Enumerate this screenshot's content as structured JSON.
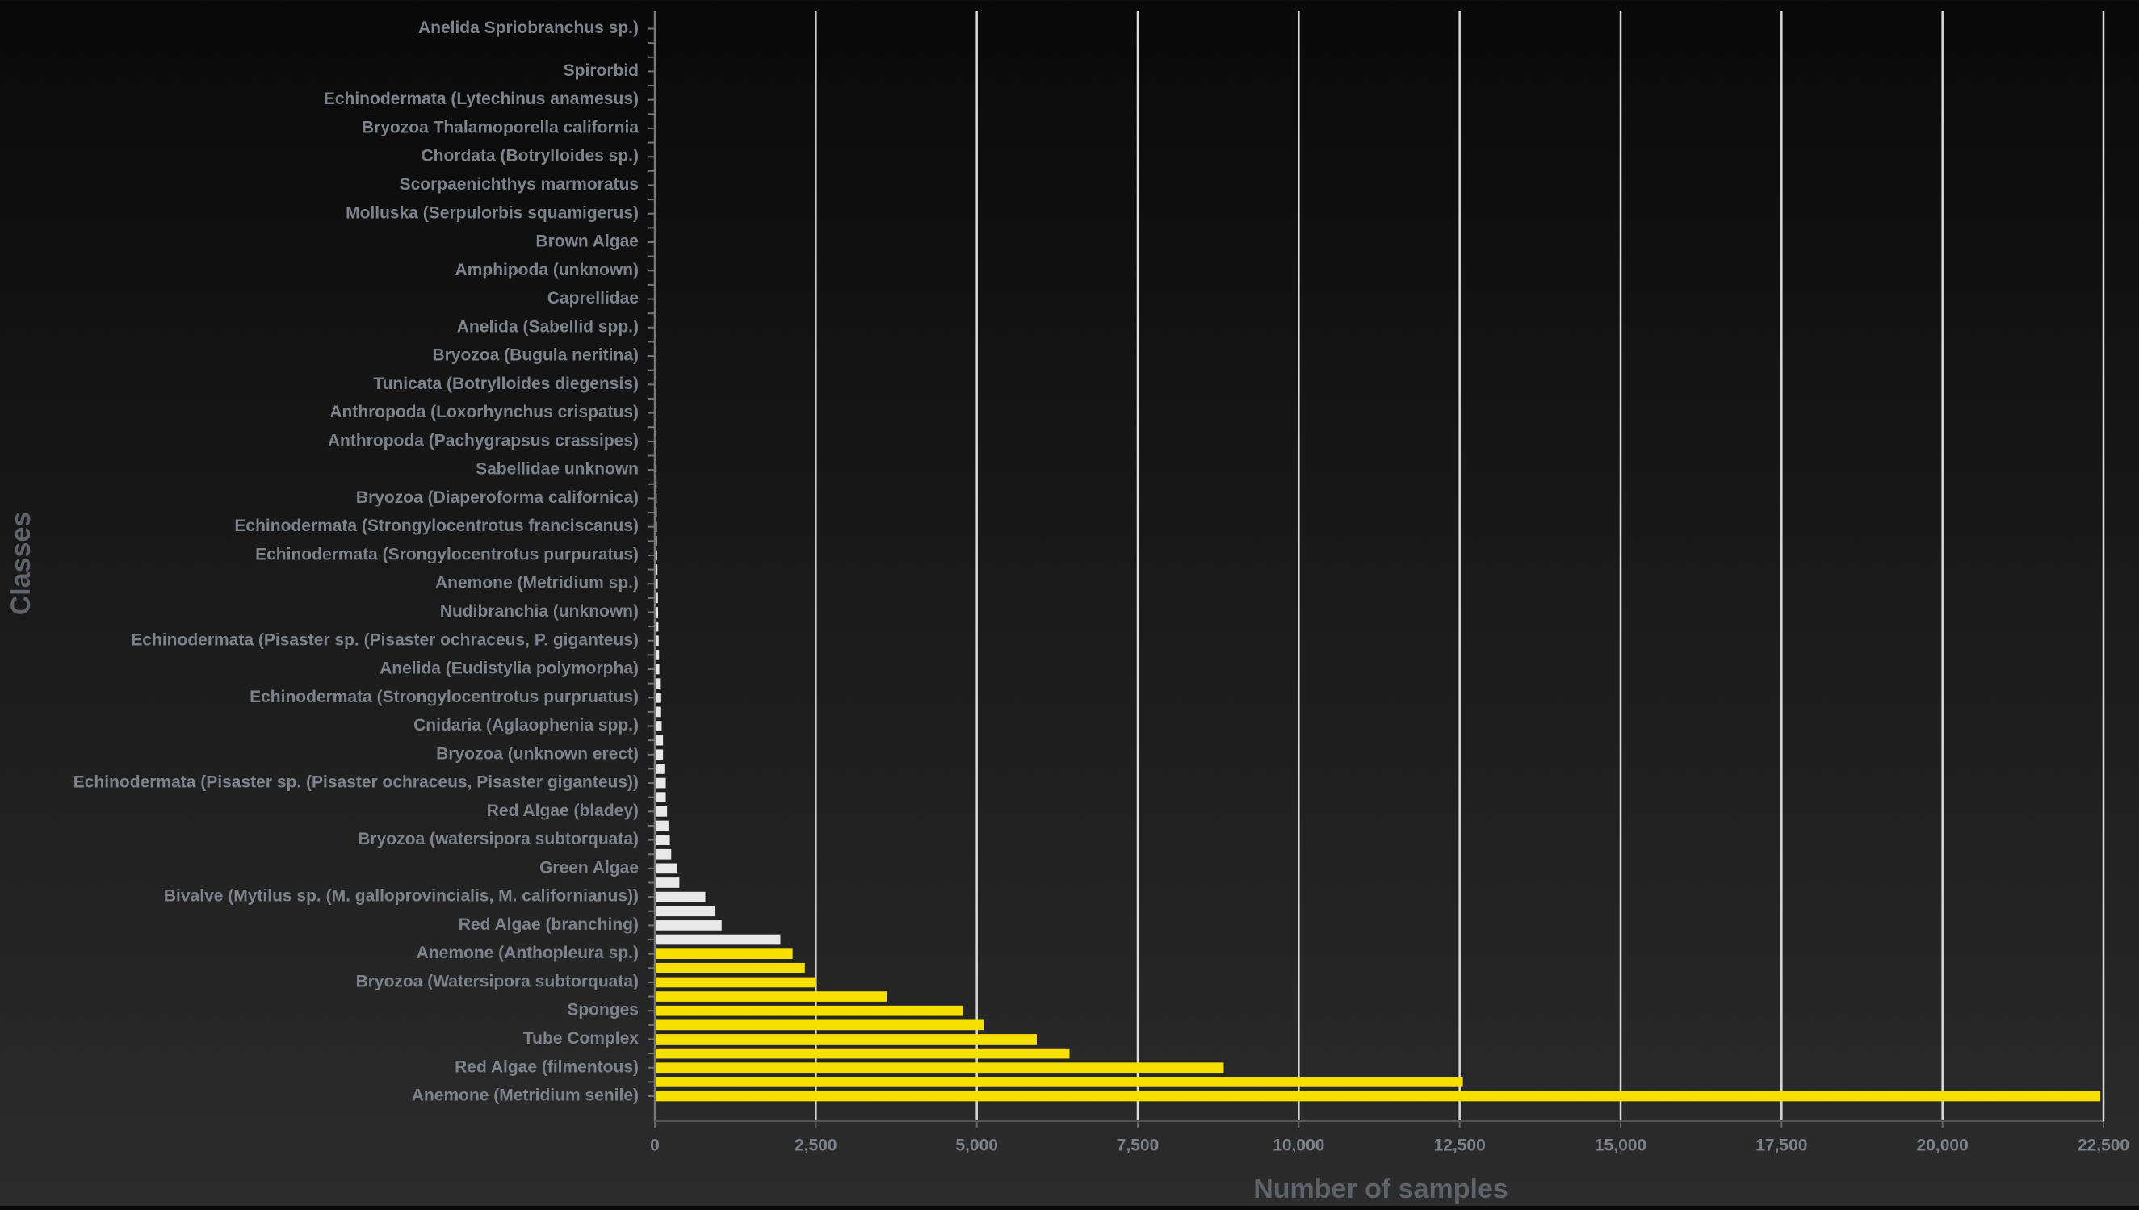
{
  "chart_data": {
    "type": "hbar",
    "x_label": "Number of samples",
    "y_label": "Classes",
    "categories": [
      "Anelida Spriobranchus sp.)",
      null,
      null,
      "Spirorbid",
      null,
      "Echinodermata (Lytechinus anamesus)",
      null,
      "Bryozoa Thalamoporella california",
      null,
      "Chordata (Botrylloides sp.)",
      null,
      "Scorpaenichthys marmoratus",
      null,
      "Molluska (Serpulorbis squamigerus)",
      null,
      "Brown Algae",
      null,
      "Amphipoda (unknown)",
      null,
      "Caprellidae",
      null,
      "Anelida (Sabellid spp.)",
      null,
      "Bryozoa (Bugula neritina)",
      null,
      "Tunicata (Botrylloides diegensis)",
      null,
      "Anthropoda (Loxorhynchus crispatus)",
      null,
      "Anthropoda (Pachygrapsus crassipes)",
      null,
      "Sabellidae unknown",
      null,
      "Bryozoa (Diaperoforma californica)",
      null,
      "Echinodermata (Strongylocentrotus franciscanus)",
      null,
      "Echinodermata (Srongylocentrotus purpuratus)",
      null,
      "Anemone (Metridium sp.)",
      null,
      "Nudibranchia (unknown)",
      null,
      "Echinodermata (Pisaster sp. (Pisaster ochraceus, P. giganteus)",
      null,
      "Anelida (Eudistylia polymorpha)",
      null,
      "Echinodermata (Strongylocentrotus purpruatus)",
      null,
      "Cnidaria (Aglaophenia spp.)",
      null,
      "Bryozoa (unknown erect)",
      null,
      "Echinodermata (Pisaster sp. (Pisaster ochraceus, Pisaster giganteus))",
      null,
      "Red Algae (bladey)",
      null,
      "Bryozoa (watersipora subtorquata)",
      null,
      "Green Algae",
      null,
      "Bivalve (Mytilus sp. (M. galloprovincialis, M. californianus))",
      null,
      "Red Algae (branching)",
      null,
      "Anemone (Anthopleura sp.)",
      null,
      "Bryozoa (Watersipora subtorquata)",
      null,
      "Sponges",
      null,
      "Tube Complex",
      null,
      "Red Algae (filmentous)",
      null,
      "Anemone (Metridium senile)"
    ],
    "values": [
      1,
      1,
      2,
      2,
      3,
      3,
      4,
      4,
      5,
      5,
      6,
      7,
      8,
      8,
      9,
      10,
      11,
      12,
      13,
      14,
      15,
      16,
      17,
      18,
      19,
      20,
      21,
      22,
      23,
      24,
      25,
      26,
      27,
      28,
      29,
      30,
      32,
      35,
      40,
      45,
      48,
      50,
      55,
      60,
      65,
      70,
      80,
      85,
      85,
      106,
      127,
      127,
      148,
      170,
      170,
      190,
      212,
      233,
      254,
      339,
      381,
      784,
      932,
      1038,
      1950,
      2140,
      2330,
      2500,
      3602,
      4788,
      5106,
      5932,
      6440,
      8835,
      12550,
      22450
    ],
    "colors": [
      "#e8e8e8",
      "#e8e8e8",
      "#e8e8e8",
      "#e8e8e8",
      "#e8e8e8",
      "#e8e8e8",
      "#e8e8e8",
      "#e8e8e8",
      "#e8e8e8",
      "#e8e8e8",
      "#e8e8e8",
      "#e8e8e8",
      "#e8e8e8",
      "#e8e8e8",
      "#e8e8e8",
      "#e8e8e8",
      "#e8e8e8",
      "#e8e8e8",
      "#e8e8e8",
      "#e8e8e8",
      "#e8e8e8",
      "#e8e8e8",
      "#e8e8e8",
      "#e8e8e8",
      "#e8e8e8",
      "#e8e8e8",
      "#e8e8e8",
      "#e8e8e8",
      "#e8e8e8",
      "#e8e8e8",
      "#e8e8e8",
      "#e8e8e8",
      "#e8e8e8",
      "#e8e8e8",
      "#e8e8e8",
      "#e8e8e8",
      "#e8e8e8",
      "#e8e8e8",
      "#e8e8e8",
      "#e8e8e8",
      "#e8e8e8",
      "#e8e8e8",
      "#e8e8e8",
      "#e8e8e8",
      "#e8e8e8",
      "#e8e8e8",
      "#e8e8e8",
      "#e8e8e8",
      "#e8e8e8",
      "#e8e8e8",
      "#e8e8e8",
      "#e8e8e8",
      "#e8e8e8",
      "#e8e8e8",
      "#e8e8e8",
      "#e8e8e8",
      "#e8e8e8",
      "#e8e8e8",
      "#e8e8e8",
      "#e8e8e8",
      "#e8e8e8",
      "#e8e8e8",
      "#e8e8e8",
      "#e8e8e8",
      "#e8e8e8",
      "#f7df00",
      "#f7df00",
      "#f7df00",
      "#f7df00",
      "#f7df00",
      "#f7df00",
      "#f7df00",
      "#f7df00",
      "#f7df00",
      "#f7df00",
      "#f7df00"
    ],
    "xlim": [
      0,
      22500
    ],
    "xticks": [
      0,
      {
        "value": 2500,
        "label": "2,500"
      },
      {
        "value": 5000,
        "label": "5,000"
      },
      {
        "value": 7500,
        "label": "7,500"
      },
      {
        "value": 10000,
        "label": "10,000"
      },
      {
        "value": 12500,
        "label": "12,500"
      },
      {
        "value": 15000,
        "label": "15,000"
      },
      {
        "value": 17500,
        "label": "17,500"
      },
      {
        "value": 20000,
        "label": "20,000"
      },
      {
        "value": 22500,
        "label": "22,500"
      }
    ],
    "grid": true
  }
}
